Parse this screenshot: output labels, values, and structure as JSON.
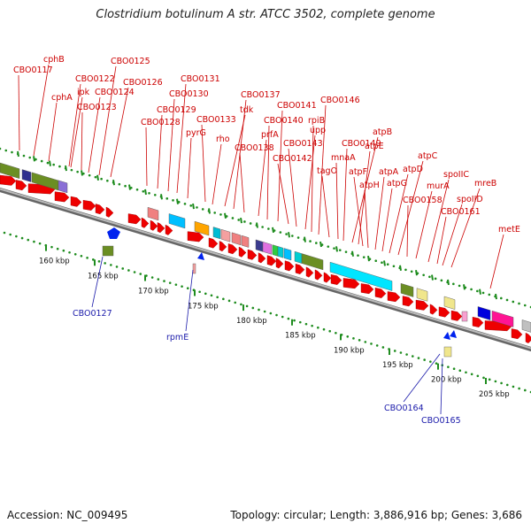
{
  "title": "Clostridium botulinum A str. ATCC 3502, complete genome",
  "footer": {
    "accession": "Accession: NC_009495",
    "summary": "Topology: circular; Length: 3,886,916 bp; Genes: 3,686"
  },
  "colors": {
    "forward_label": "#cc0000",
    "reverse_label": "#1a1aaa",
    "cds": "#ee0000",
    "backbone": "#888888",
    "dots": "#1e8c1e"
  },
  "scale_ticks": [
    "160 kbp",
    "165 kbp",
    "170 kbp",
    "175 kbp",
    "180 kbp",
    "185 kbp",
    "190 kbp",
    "195 kbp",
    "200 kbp",
    "205 kbp"
  ],
  "forward_genes": [
    {
      "label": "CBO0117"
    },
    {
      "label": "cphB"
    },
    {
      "label": "cphA"
    },
    {
      "label": "CBO0122"
    },
    {
      "label": "ipk"
    },
    {
      "label": "CBO0123"
    },
    {
      "label": "CBO0124"
    },
    {
      "label": "CBO0125"
    },
    {
      "label": "CBO0126"
    },
    {
      "label": "CBO0128"
    },
    {
      "label": "CBO0129"
    },
    {
      "label": "CBO0130"
    },
    {
      "label": "CBO0131"
    },
    {
      "label": "pyrG"
    },
    {
      "label": "CBO0133"
    },
    {
      "label": "rho"
    },
    {
      "label": "tdk"
    },
    {
      "label": "CBO0137"
    },
    {
      "label": "CBO0138"
    },
    {
      "label": "prfA"
    },
    {
      "label": "CBO0140"
    },
    {
      "label": "CBO0141"
    },
    {
      "label": "CBO0142"
    },
    {
      "label": "CBO0143"
    },
    {
      "label": "upp"
    },
    {
      "label": "rpiB"
    },
    {
      "label": "CBO0146"
    },
    {
      "label": "tagO"
    },
    {
      "label": "mnaA"
    },
    {
      "label": "CBO0149"
    },
    {
      "label": "atpB"
    },
    {
      "label": "atpE"
    },
    {
      "label": "atpF"
    },
    {
      "label": "atpH"
    },
    {
      "label": "atpA"
    },
    {
      "label": "atpG"
    },
    {
      "label": "atpD"
    },
    {
      "label": "atpC"
    },
    {
      "label": "CBO0158"
    },
    {
      "label": "murA"
    },
    {
      "label": "spoIIC"
    },
    {
      "label": "CBO0161"
    },
    {
      "label": "spoIID"
    },
    {
      "label": "mreB"
    },
    {
      "label": "metE"
    }
  ],
  "reverse_genes": [
    {
      "label": "CBO0127"
    },
    {
      "label": "rpmE"
    },
    {
      "label": "CBO0164"
    },
    {
      "label": "CBO0165"
    }
  ]
}
